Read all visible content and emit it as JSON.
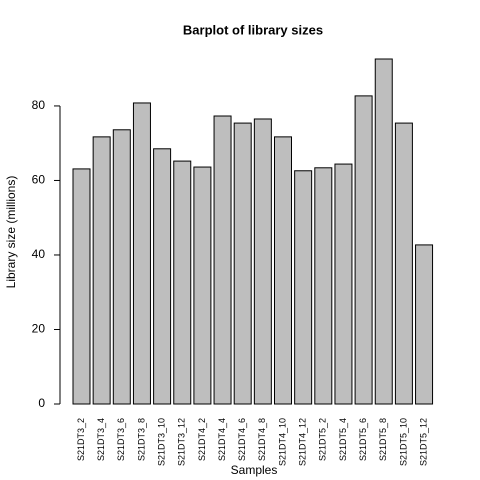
{
  "chart_data": {
    "type": "bar",
    "title": "Barplot of library sizes",
    "x_label": "Samples",
    "y_label": "Library size (millions)",
    "categories": [
      "S21DT3_2",
      "S21DT3_4",
      "S21DT3_6",
      "S21DT3_8",
      "S21DT3_10",
      "S21DT3_12",
      "S21DT4_2",
      "S21DT4_4",
      "S21DT4_6",
      "S21DT4_8",
      "S21DT4_10",
      "S21DT4_12",
      "S21DT5_2",
      "S21DT5_4",
      "S21DT5_6",
      "S21DT5_8",
      "S21DT5_10",
      "S21DT5_12"
    ],
    "values": [
      63.1,
      71.7,
      73.6,
      80.8,
      68.5,
      65.2,
      63.6,
      77.3,
      75.4,
      76.5,
      71.7,
      62.6,
      63.4,
      64.4,
      82.7,
      92.6,
      75.4,
      42.7
    ],
    "color": "#bebebe",
    "ylim": [
      0,
      92.6
    ],
    "yticks": [
      0,
      20,
      40,
      60,
      80
    ]
  }
}
